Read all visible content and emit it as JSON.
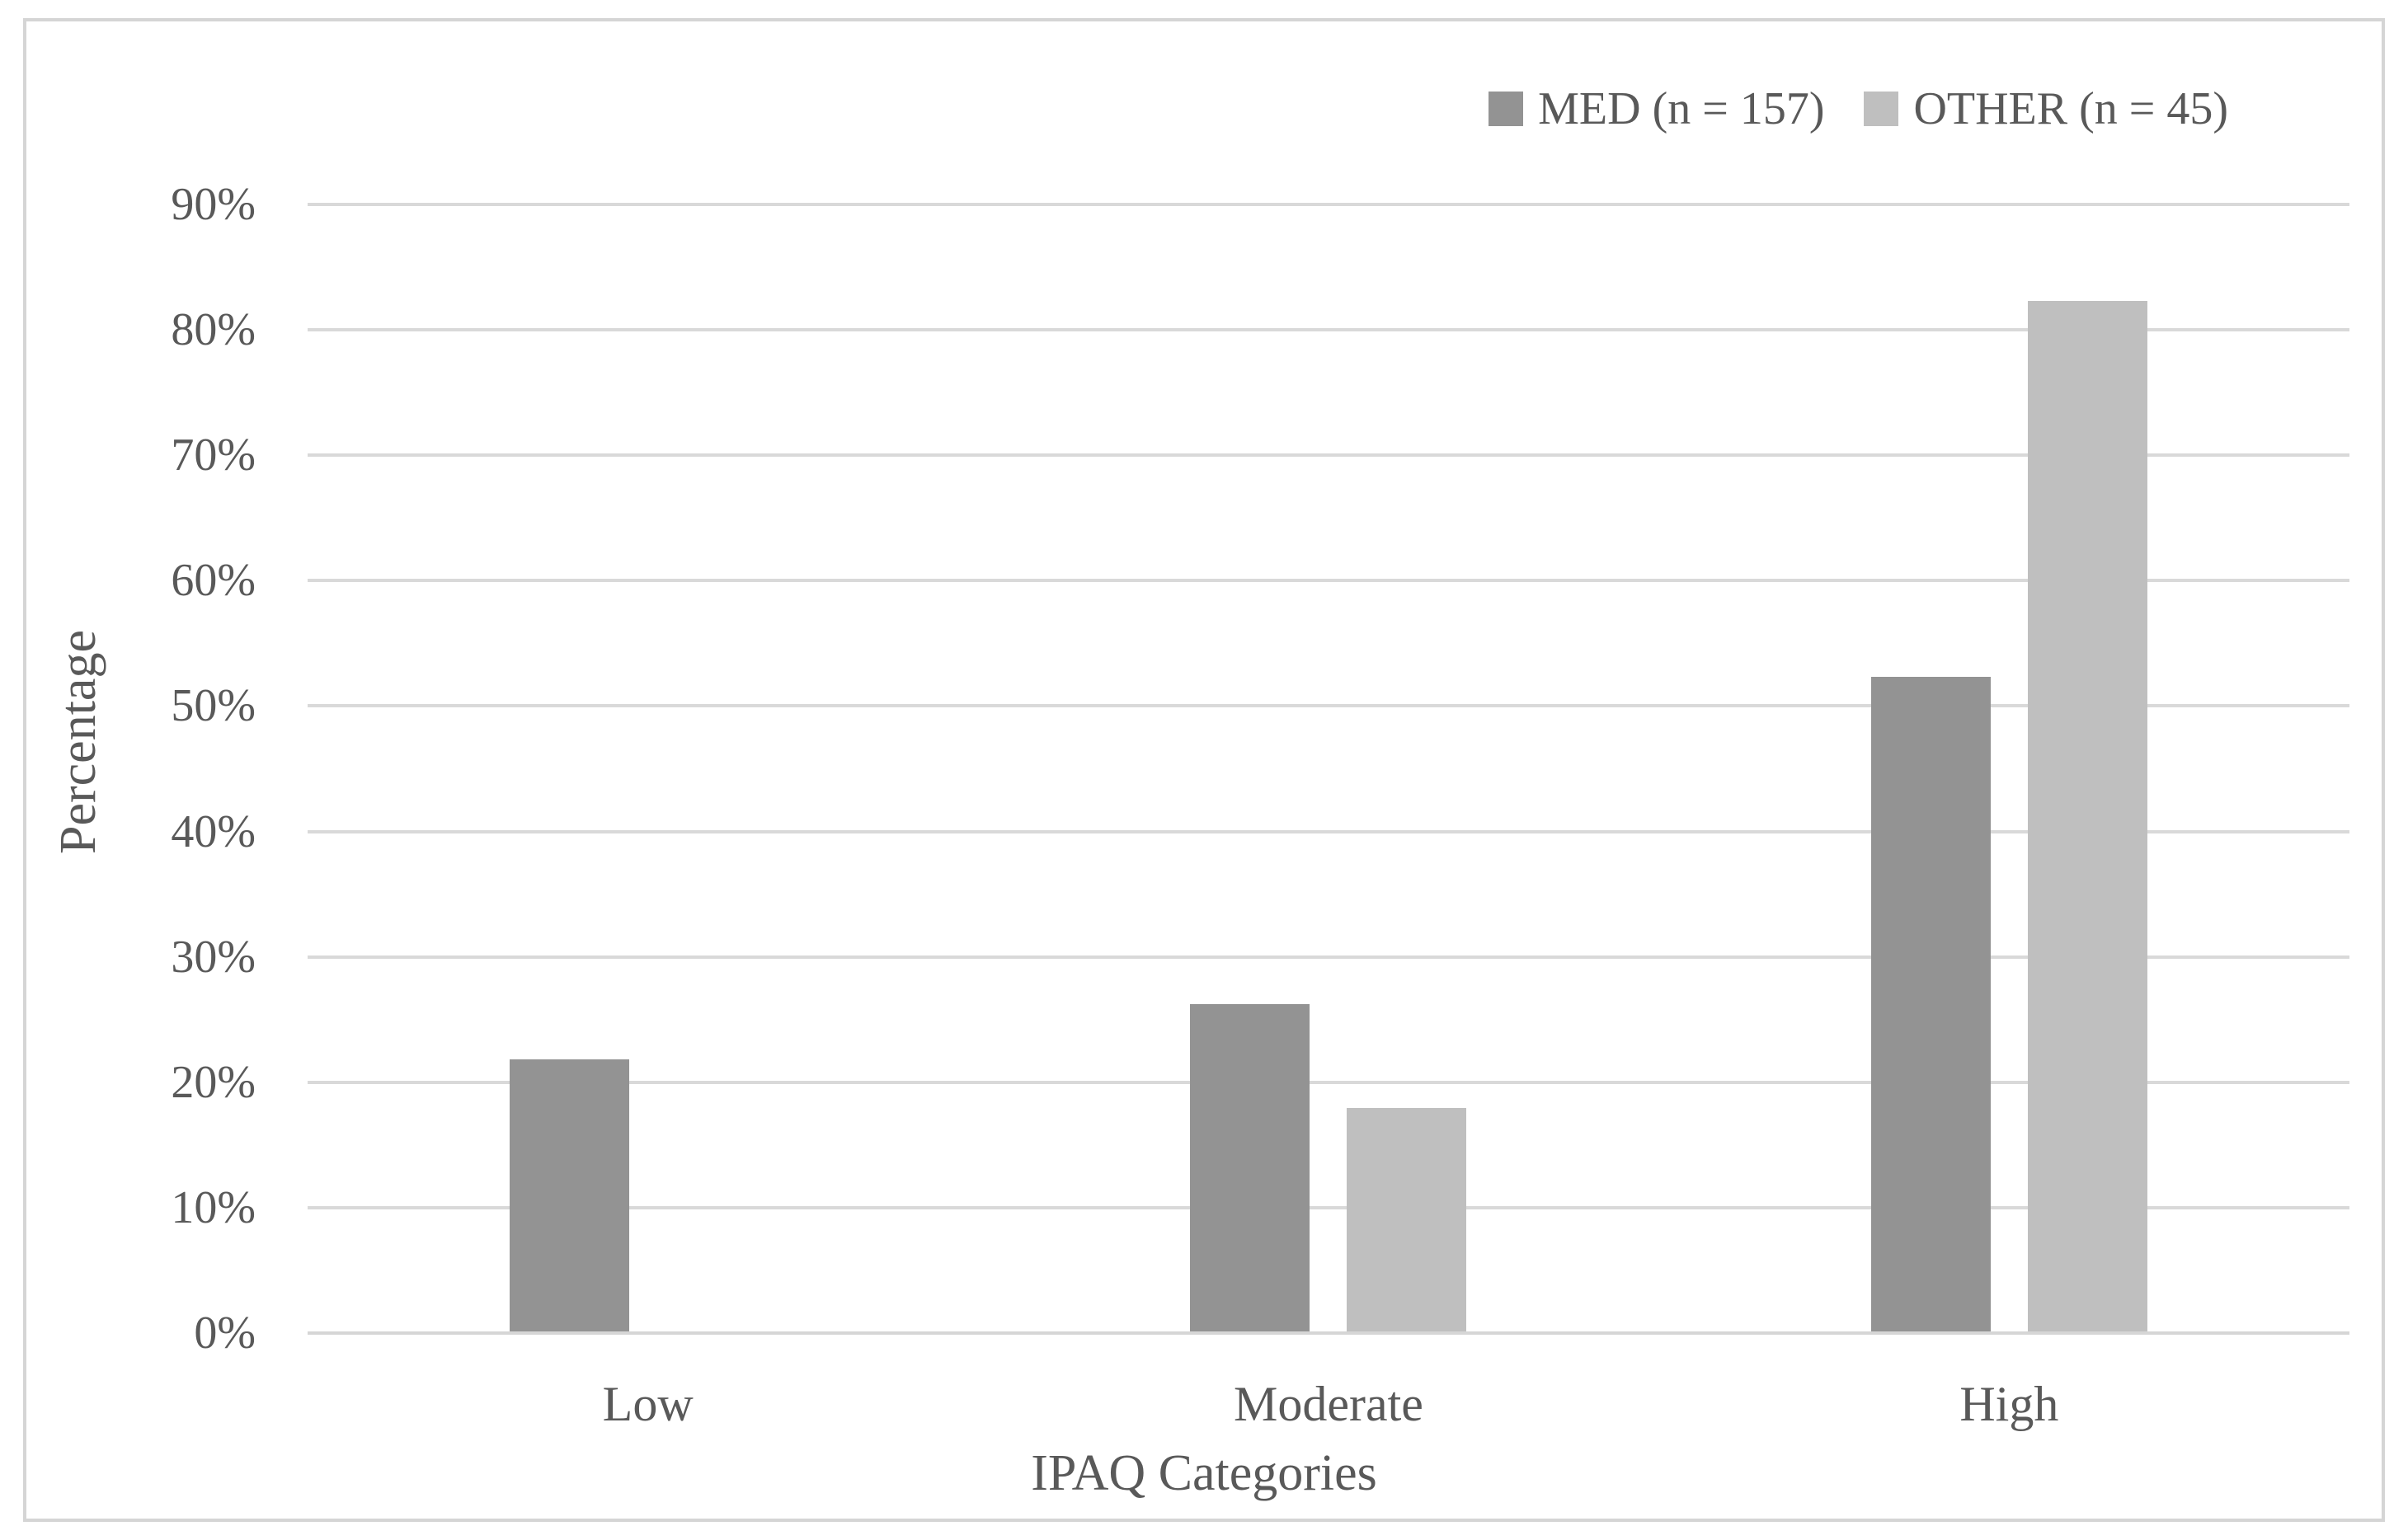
{
  "chart_data": {
    "type": "bar",
    "title": "",
    "categories": [
      "Low",
      "Moderate",
      "High"
    ],
    "series": [
      {
        "name": "MED (n = 157)",
        "key": "med",
        "color": "#939393",
        "values": [
          21.7,
          26.1,
          52.2
        ]
      },
      {
        "name": "OTHER (n = 45)",
        "key": "other",
        "color": "#bfbfbf",
        "values": [
          0,
          17.8,
          82.2
        ]
      }
    ],
    "xlabel": "IPAQ Categories",
    "ylabel": "Percentage",
    "ylim": [
      0,
      90
    ],
    "ytick_step": 10,
    "yticks": [
      "0%",
      "10%",
      "20%",
      "30%",
      "40%",
      "50%",
      "60%",
      "70%",
      "80%",
      "90%"
    ],
    "grid": true,
    "legend_position": "top-right"
  },
  "colors": {
    "text": "#595959",
    "gridline": "#d9d9d9",
    "axis_line": "#d6d6d6",
    "frame_border": "#d5d5d5",
    "background": "#ffffff"
  }
}
